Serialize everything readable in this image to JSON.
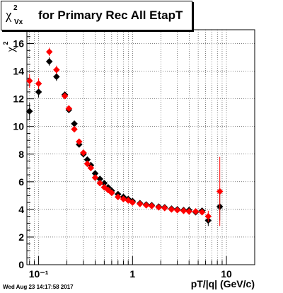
{
  "chart_data": {
    "type": "scatter",
    "title": {
      "symbol": "χ",
      "superscript": "2",
      "subscript": "Vx",
      "text": "for Primary Rec All EtapT"
    },
    "xlabel": "pT/|q| (GeV/c)",
    "ylabel": "χ",
    "ylabel_sup": "2",
    "xscale": "log",
    "xlim": [
      0.075,
      20
    ],
    "ylim": [
      0,
      17
    ],
    "grid": true,
    "y_ticks": [
      "0",
      "2",
      "4",
      "6",
      "8",
      "10",
      "12",
      "14",
      "16"
    ],
    "x_ticks": [
      "10⁻¹",
      "1",
      "10"
    ],
    "series": [
      {
        "color": "#000000",
        "marker": "diamond",
        "points": [
          {
            "x": 0.08,
            "y": 11.1,
            "err": 0.6
          },
          {
            "x": 0.1,
            "y": 12.5,
            "err": 0.4
          },
          {
            "x": 0.13,
            "y": 14.7,
            "err": 0.3
          },
          {
            "x": 0.155,
            "y": 13.6,
            "err": 0.3
          },
          {
            "x": 0.19,
            "y": 12.3,
            "err": 0.2
          },
          {
            "x": 0.21,
            "y": 11.2,
            "err": 0.2
          },
          {
            "x": 0.24,
            "y": 10.2,
            "err": 0.2
          },
          {
            "x": 0.27,
            "y": 8.7,
            "err": 0.15
          },
          {
            "x": 0.3,
            "y": 8.0,
            "err": 0.1
          },
          {
            "x": 0.33,
            "y": 7.6,
            "err": 0.1
          },
          {
            "x": 0.36,
            "y": 7.2,
            "err": 0.1
          },
          {
            "x": 0.4,
            "y": 6.6
          },
          {
            "x": 0.45,
            "y": 6.2
          },
          {
            "x": 0.5,
            "y": 5.9
          },
          {
            "x": 0.55,
            "y": 5.6
          },
          {
            "x": 0.6,
            "y": 5.35
          },
          {
            "x": 0.7,
            "y": 5.1
          },
          {
            "x": 0.8,
            "y": 4.9
          },
          {
            "x": 0.9,
            "y": 4.75
          },
          {
            "x": 1.0,
            "y": 4.6
          },
          {
            "x": 1.2,
            "y": 4.45
          },
          {
            "x": 1.4,
            "y": 4.35
          },
          {
            "x": 1.6,
            "y": 4.3
          },
          {
            "x": 1.9,
            "y": 4.2
          },
          {
            "x": 2.2,
            "y": 4.15
          },
          {
            "x": 2.6,
            "y": 4.05
          },
          {
            "x": 3.0,
            "y": 4.0
          },
          {
            "x": 3.5,
            "y": 3.95
          },
          {
            "x": 4.0,
            "y": 3.95
          },
          {
            "x": 4.7,
            "y": 3.8
          },
          {
            "x": 5.5,
            "y": 3.9
          },
          {
            "x": 6.4,
            "y": 3.2,
            "err": 0.4
          },
          {
            "x": 8.5,
            "y": 4.2,
            "err": 1.0
          }
        ]
      },
      {
        "color": "#ff0000",
        "marker": "diamond",
        "points": [
          {
            "x": 0.08,
            "y": 13.3,
            "err": 0.5
          },
          {
            "x": 0.1,
            "y": 13.1,
            "err": 0.4
          },
          {
            "x": 0.13,
            "y": 15.4,
            "err": 0.3
          },
          {
            "x": 0.155,
            "y": 14.1,
            "err": 0.3
          },
          {
            "x": 0.19,
            "y": 12.2,
            "err": 0.2
          },
          {
            "x": 0.21,
            "y": 11.3,
            "err": 0.2
          },
          {
            "x": 0.24,
            "y": 9.8,
            "err": 0.2
          },
          {
            "x": 0.27,
            "y": 8.9,
            "err": 0.15
          },
          {
            "x": 0.3,
            "y": 8.1,
            "err": 0.1
          },
          {
            "x": 0.33,
            "y": 7.3,
            "err": 0.1
          },
          {
            "x": 0.36,
            "y": 7.0,
            "err": 0.1
          },
          {
            "x": 0.4,
            "y": 6.3
          },
          {
            "x": 0.45,
            "y": 5.9
          },
          {
            "x": 0.5,
            "y": 5.6
          },
          {
            "x": 0.55,
            "y": 5.4
          },
          {
            "x": 0.6,
            "y": 5.2
          },
          {
            "x": 0.7,
            "y": 4.9
          },
          {
            "x": 0.8,
            "y": 4.75
          },
          {
            "x": 0.9,
            "y": 4.65
          },
          {
            "x": 1.0,
            "y": 4.5
          },
          {
            "x": 1.2,
            "y": 4.4
          },
          {
            "x": 1.4,
            "y": 4.3
          },
          {
            "x": 1.6,
            "y": 4.25
          },
          {
            "x": 1.9,
            "y": 4.15
          },
          {
            "x": 2.2,
            "y": 4.1
          },
          {
            "x": 2.6,
            "y": 4.0
          },
          {
            "x": 3.0,
            "y": 3.95
          },
          {
            "x": 3.5,
            "y": 3.9
          },
          {
            "x": 4.0,
            "y": 3.85
          },
          {
            "x": 4.7,
            "y": 3.85
          },
          {
            "x": 5.5,
            "y": 3.8
          },
          {
            "x": 6.4,
            "y": 3.5,
            "err": 0.4
          },
          {
            "x": 8.5,
            "y": 5.3,
            "err": 2.5
          }
        ]
      }
    ]
  },
  "footer": "Wed Aug 23 14:17:58 2017"
}
